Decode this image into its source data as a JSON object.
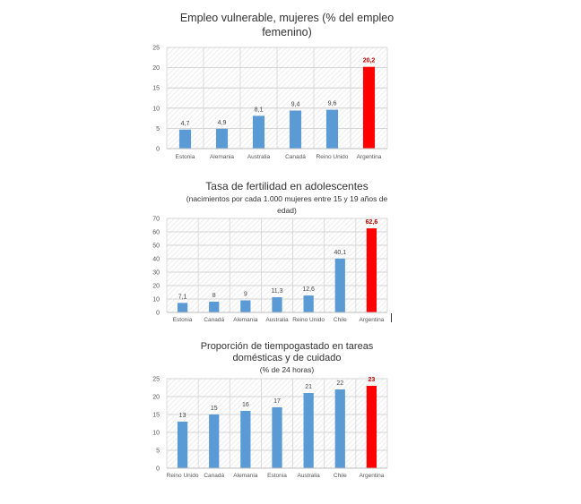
{
  "chart_data": [
    {
      "type": "bar",
      "title": "Empleo vulnerable, mujeres (% del empleo femenino)",
      "title_lines": [
        "Empleo vulnerable, mujeres (% del empleo",
        "femenino)"
      ],
      "subtitle_lines": [],
      "categories": [
        "Estonia",
        "Alemania",
        "Australia",
        "Canadá",
        "Reino Unido",
        "Argentina"
      ],
      "values": [
        4.7,
        4.9,
        8.1,
        9.4,
        9.6,
        20.2
      ],
      "value_labels": [
        "4,7",
        "4,9",
        "8,1",
        "9,4",
        "9,6",
        "20,2"
      ],
      "highlight": "Argentina",
      "ylim": [
        0,
        25
      ],
      "yticks": [
        0,
        5,
        10,
        15,
        20,
        25
      ],
      "grid": true,
      "colors": {
        "bar": "#5b9bd5",
        "highlight": "#ff0000",
        "highlight_label": "#c00000"
      }
    },
    {
      "type": "bar",
      "title": "Tasa de fertilidad en adolescentes",
      "title_lines": [
        "Tasa de fertilidad en adolescentes"
      ],
      "subtitle_lines": [
        "(nacimientos por cada 1.000 mujeres entre 15 y 19 años de",
        "edad)"
      ],
      "categories": [
        "Estonia",
        "Canadá",
        "Alemania",
        "Australia",
        "Reino Unido",
        "Chile",
        "Argentina"
      ],
      "values": [
        7.1,
        8,
        9,
        11.3,
        12.6,
        40.1,
        62.6
      ],
      "value_labels": [
        "7,1",
        "8",
        "9",
        "11,3",
        "12,6",
        "40,1",
        "62,6"
      ],
      "highlight": "Argentina",
      "ylim": [
        0,
        70
      ],
      "yticks": [
        0,
        10,
        20,
        30,
        40,
        50,
        60,
        70
      ],
      "grid": true,
      "colors": {
        "bar": "#5b9bd5",
        "highlight": "#ff0000",
        "highlight_label": "#c00000"
      }
    },
    {
      "type": "bar",
      "title": "Proporción de tiempo gastado en tareas domésticas y de cuidado",
      "title_lines": [
        "Proporción de tiempogastado en tareas",
        "domésticas y de cuidado"
      ],
      "subtitle_lines": [
        "(% de 24 horas)"
      ],
      "categories": [
        "Reino Unido",
        "Canadá",
        "Alemania",
        "Estonia",
        "Australia",
        "Chile",
        "Argentina"
      ],
      "values": [
        13,
        15,
        16,
        17,
        21,
        22,
        23
      ],
      "value_labels": [
        "13",
        "15",
        "16",
        "17",
        "21",
        "22",
        "23"
      ],
      "highlight": "Argentina",
      "ylim": [
        0,
        25
      ],
      "yticks": [
        0,
        5,
        10,
        15,
        20,
        25
      ],
      "grid": true,
      "colors": {
        "bar": "#5b9bd5",
        "highlight": "#ff0000",
        "highlight_label": "#c00000"
      }
    }
  ]
}
